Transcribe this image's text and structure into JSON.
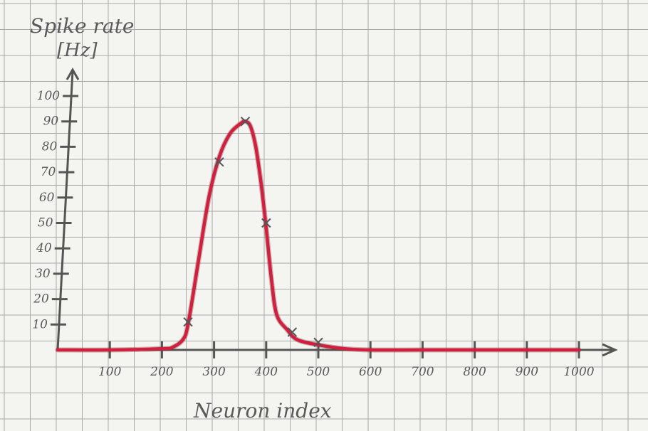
{
  "chart_data": {
    "type": "line",
    "title": "",
    "ylabel_line1": "Spike rate",
    "ylabel_line2": "[Hz]",
    "xlabel": "Neuron index",
    "x_ticks": [
      100,
      200,
      300,
      400,
      500,
      600,
      700,
      800,
      900,
      1000
    ],
    "x_tick_labels": [
      "100",
      "200",
      "300",
      "400",
      "500",
      "600",
      "700",
      "800",
      "900",
      "1000"
    ],
    "y_ticks": [
      10,
      20,
      30,
      40,
      50,
      60,
      70,
      80,
      90,
      100
    ],
    "y_tick_labels": [
      "10",
      "20",
      "30",
      "40",
      "50",
      "60",
      "70",
      "80",
      "90",
      "100"
    ],
    "xlim": [
      0,
      1050
    ],
    "ylim": [
      0,
      110
    ],
    "grid": true,
    "curve_color": "#d0203e",
    "axis_color": "#555555",
    "marked_points": [
      {
        "x": 250,
        "y": 11
      },
      {
        "x": 310,
        "y": 74
      },
      {
        "x": 360,
        "y": 90
      },
      {
        "x": 400,
        "y": 50
      },
      {
        "x": 450,
        "y": 7
      },
      {
        "x": 500,
        "y": 3
      }
    ],
    "curve": [
      {
        "x": 0,
        "y": 0
      },
      {
        "x": 100,
        "y": 0
      },
      {
        "x": 200,
        "y": 0.5
      },
      {
        "x": 220,
        "y": 1
      },
      {
        "x": 240,
        "y": 4
      },
      {
        "x": 250,
        "y": 10
      },
      {
        "x": 270,
        "y": 35
      },
      {
        "x": 290,
        "y": 60
      },
      {
        "x": 310,
        "y": 76
      },
      {
        "x": 330,
        "y": 85
      },
      {
        "x": 350,
        "y": 89
      },
      {
        "x": 360,
        "y": 90
      },
      {
        "x": 370,
        "y": 88
      },
      {
        "x": 380,
        "y": 80
      },
      {
        "x": 390,
        "y": 66
      },
      {
        "x": 400,
        "y": 48
      },
      {
        "x": 410,
        "y": 28
      },
      {
        "x": 420,
        "y": 14
      },
      {
        "x": 440,
        "y": 8
      },
      {
        "x": 460,
        "y": 4
      },
      {
        "x": 500,
        "y": 2
      },
      {
        "x": 550,
        "y": 0.5
      },
      {
        "x": 600,
        "y": 0
      },
      {
        "x": 700,
        "y": 0
      },
      {
        "x": 800,
        "y": 0
      },
      {
        "x": 900,
        "y": 0
      },
      {
        "x": 1000,
        "y": 0
      }
    ]
  }
}
